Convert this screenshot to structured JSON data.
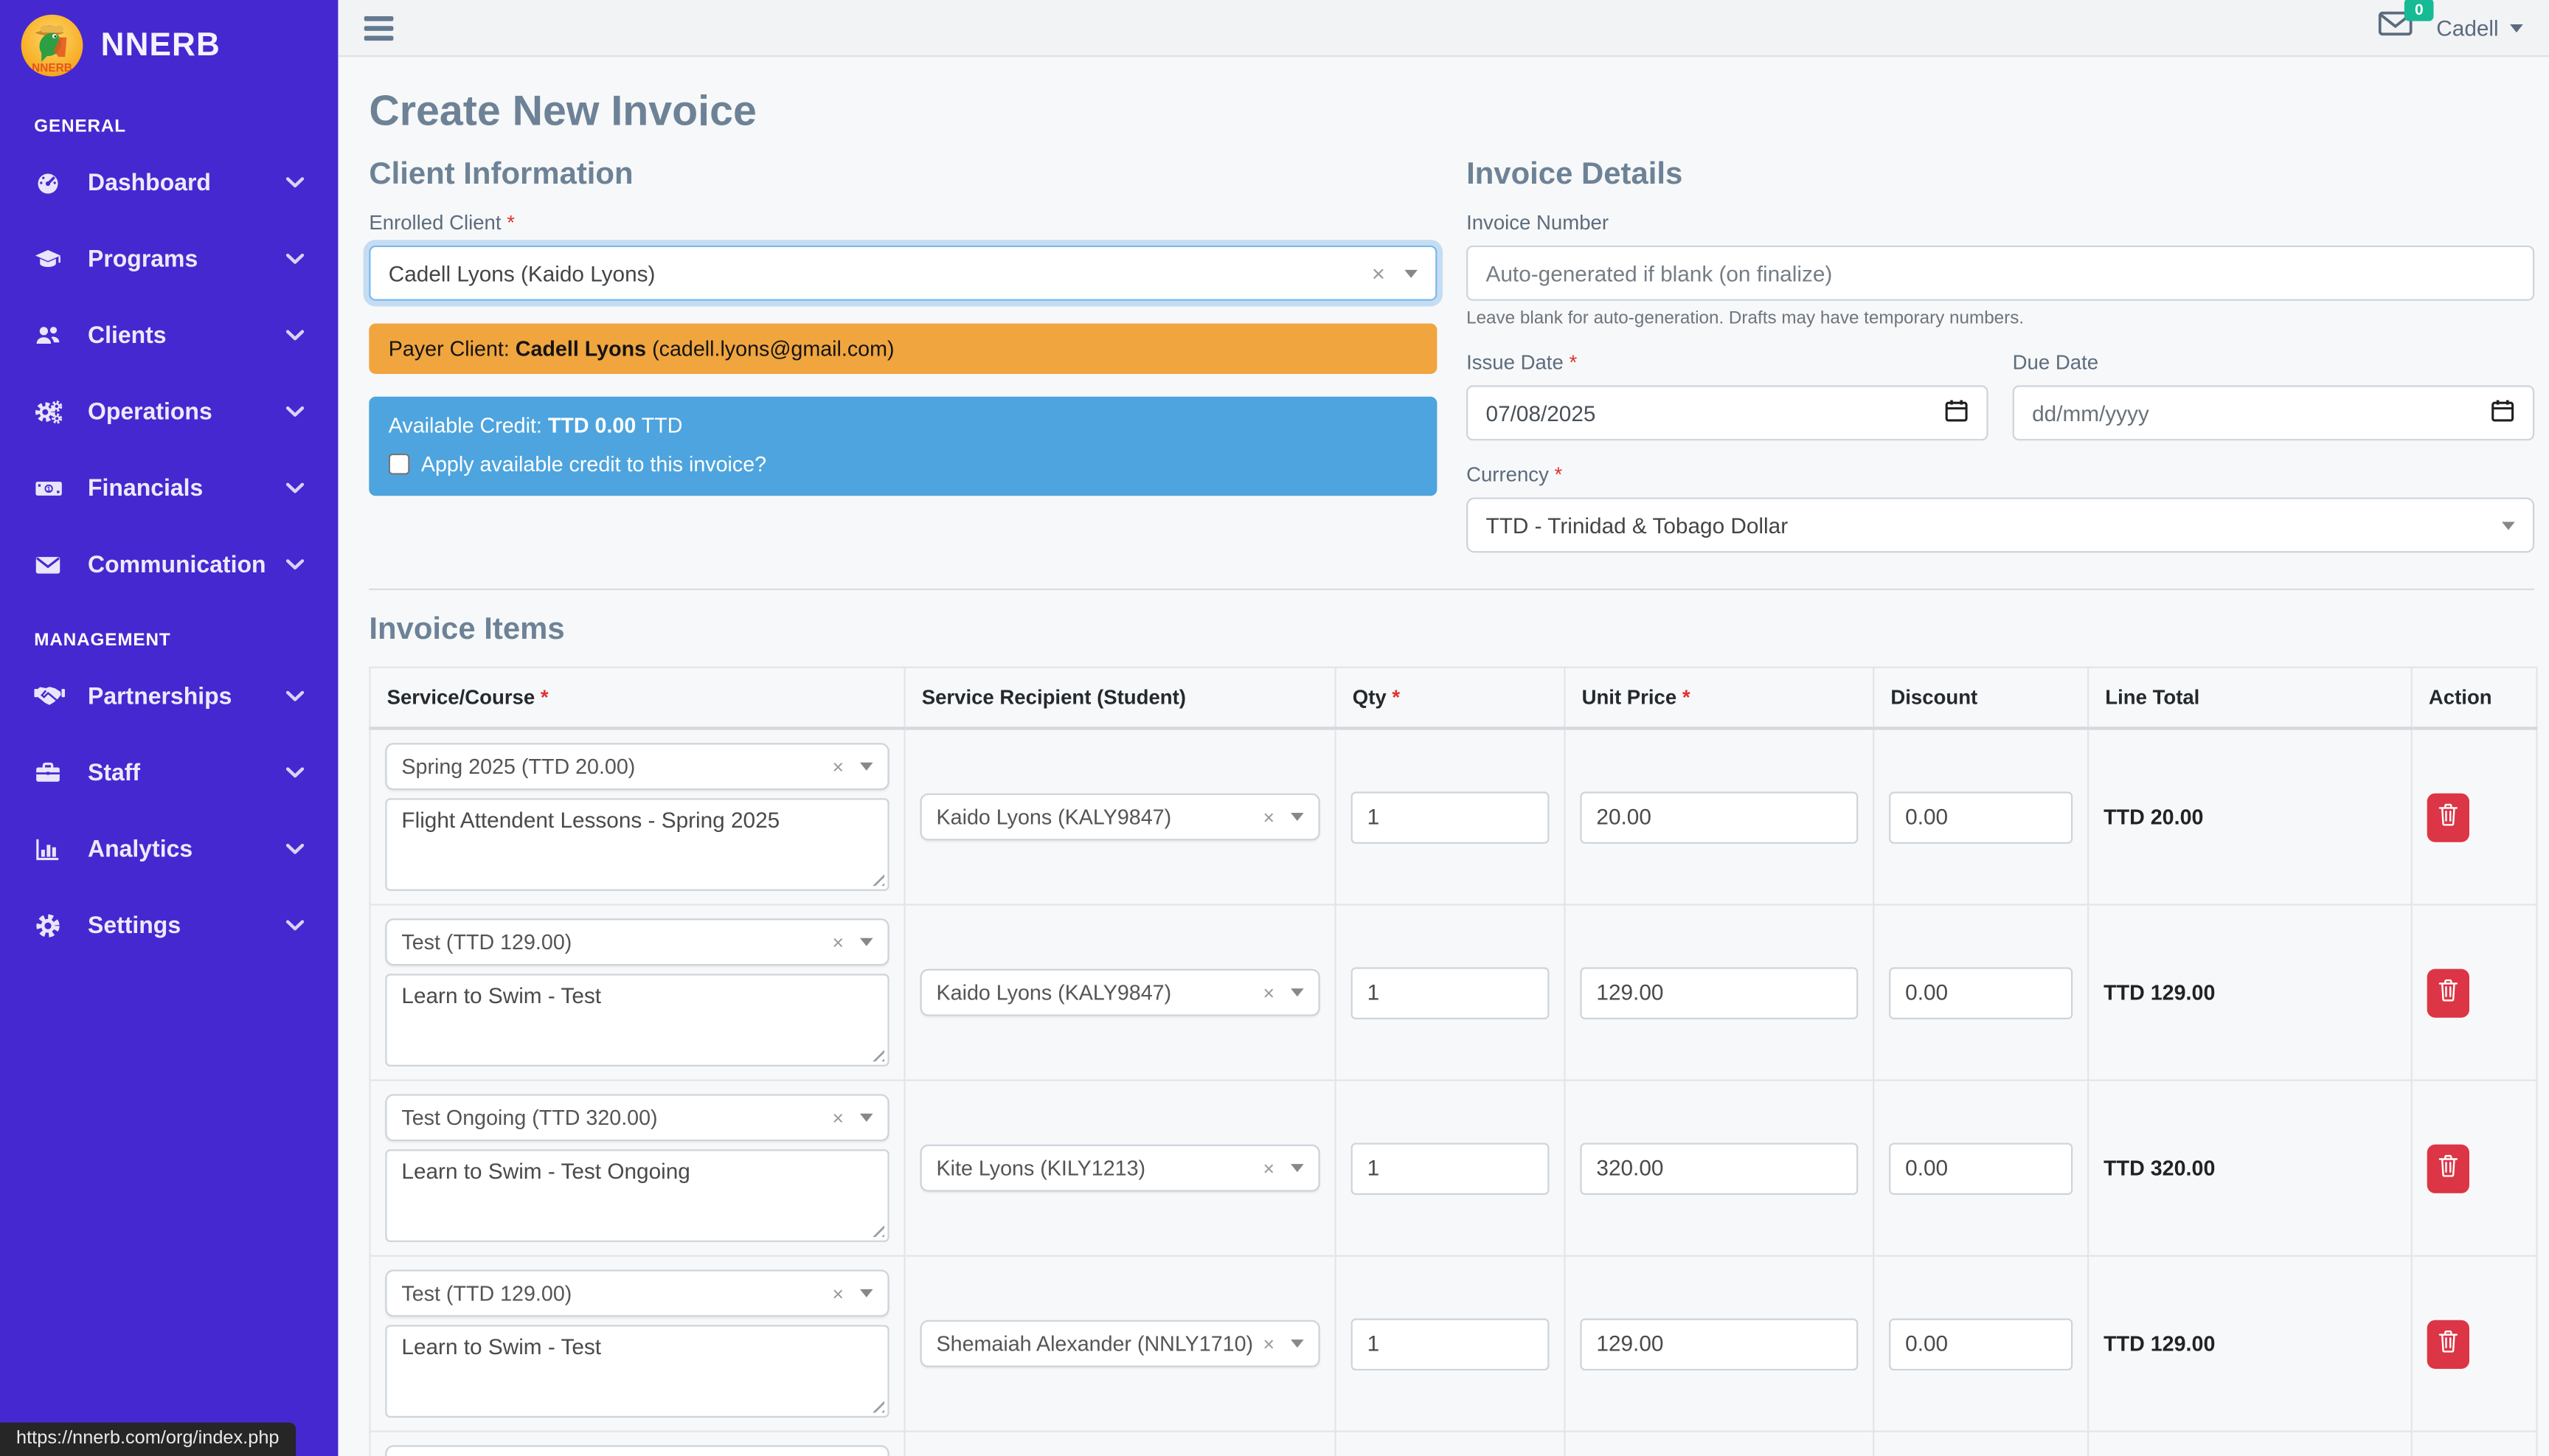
{
  "app": {
    "brand": "NNERB",
    "user": "Cadell",
    "notification_count": "0",
    "status_url": "https://nnerb.com/org/index.php"
  },
  "sidebar": {
    "sections": [
      {
        "label": "GENERAL",
        "items": [
          {
            "label": "Dashboard",
            "icon": "dashboard-icon"
          },
          {
            "label": "Programs",
            "icon": "programs-icon"
          },
          {
            "label": "Clients",
            "icon": "clients-icon"
          },
          {
            "label": "Operations",
            "icon": "operations-icon"
          },
          {
            "label": "Financials",
            "icon": "financials-icon"
          },
          {
            "label": "Communication",
            "icon": "communication-icon"
          }
        ]
      },
      {
        "label": "MANAGEMENT",
        "items": [
          {
            "label": "Partnerships",
            "icon": "partnerships-icon"
          },
          {
            "label": "Staff",
            "icon": "staff-icon"
          },
          {
            "label": "Analytics",
            "icon": "analytics-icon"
          },
          {
            "label": "Settings",
            "icon": "settings-icon"
          }
        ]
      }
    ]
  },
  "page": {
    "title": "Create New Invoice",
    "client_info": {
      "heading": "Client Information",
      "enrolled_client_label": "Enrolled Client",
      "enrolled_client_value": "Cadell Lyons (Kaido Lyons)",
      "payer_alert": {
        "prefix": "Payer Client:",
        "name": "Cadell Lyons",
        "email": "(cadell.lyons@gmail.com)"
      },
      "credit_alert": {
        "prefix": "Available Credit:",
        "amount": "TTD 0.00",
        "suffix": "TTD",
        "checkbox_label": "Apply available credit to this invoice?"
      }
    },
    "invoice_details": {
      "heading": "Invoice Details",
      "invoice_number_label": "Invoice Number",
      "invoice_number_placeholder": "Auto-generated if blank (on finalize)",
      "invoice_number_help": "Leave blank for auto-generation. Drafts may have temporary numbers.",
      "issue_date_label": "Issue Date",
      "issue_date_value": "07/08/2025",
      "due_date_label": "Due Date",
      "due_date_placeholder": "dd/mm/yyyy",
      "currency_label": "Currency",
      "currency_value": "TTD - Trinidad & Tobago Dollar"
    },
    "invoice_items": {
      "heading": "Invoice Items",
      "columns": [
        {
          "label": "Service/Course",
          "required": true
        },
        {
          "label": "Service Recipient (Student)",
          "required": false
        },
        {
          "label": "Qty",
          "required": true
        },
        {
          "label": "Unit Price",
          "required": true
        },
        {
          "label": "Discount",
          "required": false
        },
        {
          "label": "Line Total",
          "required": false
        },
        {
          "label": "Action",
          "required": false
        }
      ],
      "rows": [
        {
          "service": "Spring 2025 (TTD 20.00)",
          "description": "Flight Attendent Lessons - Spring 2025",
          "recipient": "Kaido Lyons (KALY9847)",
          "qty": "1",
          "unit_price": "20.00",
          "discount": "0.00",
          "line_total": "TTD 20.00"
        },
        {
          "service": "Test (TTD 129.00)",
          "description": "Learn to Swim - Test",
          "recipient": "Kaido Lyons (KALY9847)",
          "qty": "1",
          "unit_price": "129.00",
          "discount": "0.00",
          "line_total": "TTD 129.00"
        },
        {
          "service": "Test Ongoing (TTD 320.00)",
          "description": "Learn to Swim - Test Ongoing",
          "recipient": "Kite Lyons (KILY1213)",
          "qty": "1",
          "unit_price": "320.00",
          "discount": "0.00",
          "line_total": "TTD 320.00"
        },
        {
          "service": "Test (TTD 129.00)",
          "description": "Learn to Swim - Test",
          "recipient": "Shemaiah Alexander (NNLY1710)",
          "qty": "1",
          "unit_price": "129.00",
          "discount": "0.00",
          "line_total": "TTD 129.00"
        }
      ]
    }
  },
  "colors": {
    "sidebar": "#4628d0",
    "accent_orange": "#f0a53e",
    "accent_blue": "#4da4de",
    "badge_teal": "#16ba94",
    "danger_red": "#dc3545",
    "heading_gray_blue": "#6d8296"
  }
}
